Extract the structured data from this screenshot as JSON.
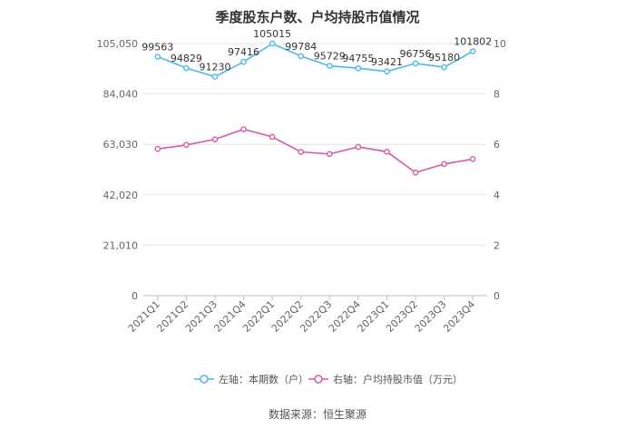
{
  "chart_data": {
    "type": "line",
    "title": "季度股东户数、户均持股市值情况",
    "categories": [
      "2021Q1",
      "2021Q2",
      "2021Q3",
      "2021Q4",
      "2022Q1",
      "2022Q2",
      "2022Q3",
      "2022Q4",
      "2023Q1",
      "2023Q2",
      "2023Q3",
      "2023Q4"
    ],
    "left_axis": {
      "ticks": [
        "0",
        "21,010",
        "42,020",
        "63,030",
        "84,040",
        "105,050"
      ],
      "ylim": [
        0,
        105050
      ]
    },
    "right_axis": {
      "ticks": [
        "0",
        "2",
        "4",
        "6",
        "8",
        "10"
      ],
      "ylim": [
        0,
        10
      ]
    },
    "series": [
      {
        "name": "左轴：本期数（户）",
        "axis": "left",
        "color": "#4db8e8",
        "values": [
          99563,
          94829,
          91230,
          97416,
          105015,
          99784,
          95729,
          94755,
          93421,
          96756,
          95180,
          101802
        ],
        "labels": [
          "99563",
          "94829",
          "91230",
          "97416",
          "105015",
          "99784",
          "95729",
          "94755",
          "93421",
          "96756",
          "95180",
          "101802"
        ]
      },
      {
        "name": "右轴：户均持股市值（万元）",
        "axis": "right",
        "color": "#d45ba8",
        "values": [
          5.82,
          5.98,
          6.2,
          6.6,
          6.3,
          5.7,
          5.62,
          5.9,
          5.71,
          4.88,
          5.22,
          5.42
        ]
      }
    ],
    "grid": true,
    "legend": "bottom"
  },
  "source": "数据来源：恒生聚源"
}
